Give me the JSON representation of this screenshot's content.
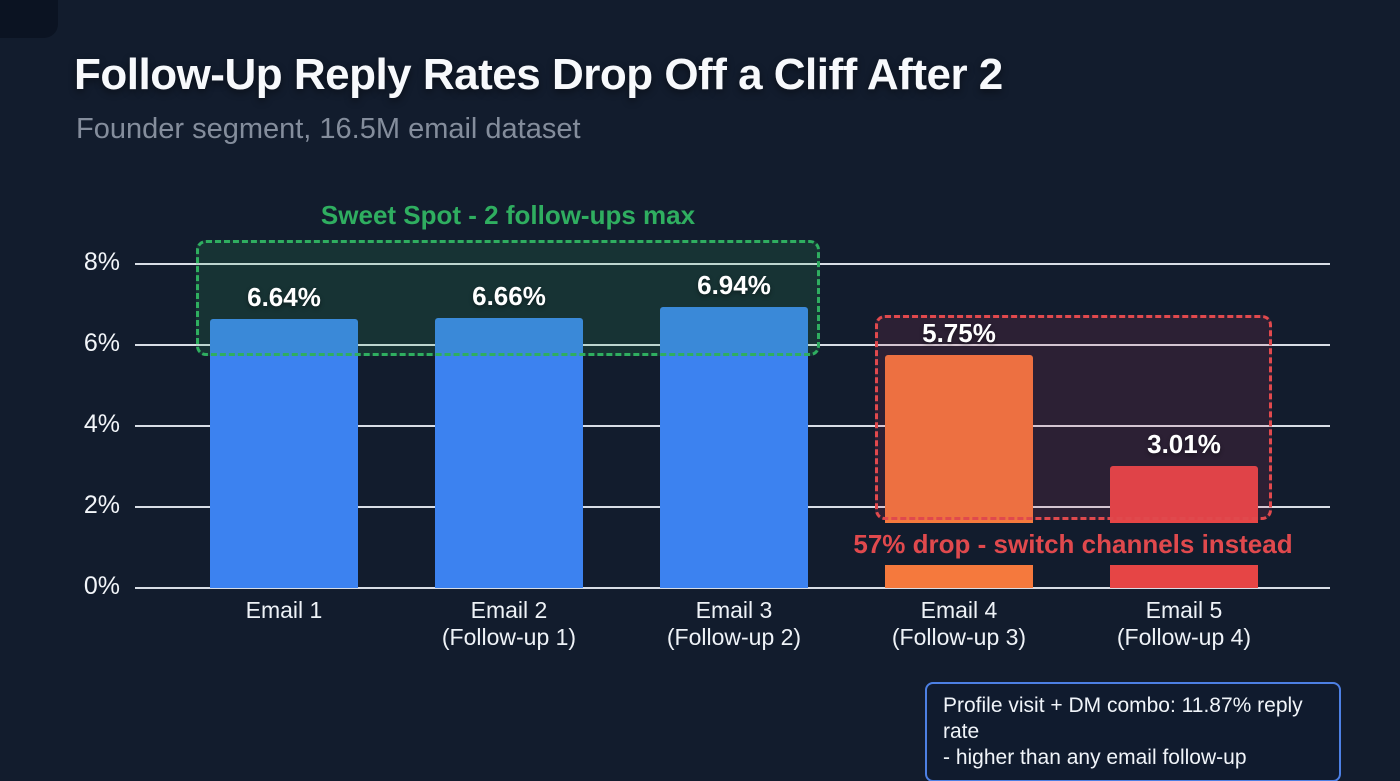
{
  "header": {
    "title": "Follow-Up Reply Rates Drop Off a Cliff After 2",
    "subtitle": "Founder segment, 16.5M email dataset"
  },
  "chart_data": {
    "type": "bar",
    "title": "Follow-Up Reply Rates Drop Off a Cliff After 2",
    "subtitle": "Founder segment, 16.5M email dataset",
    "categories": [
      [
        "Email 1",
        ""
      ],
      [
        "Email 2",
        "(Follow-up 1)"
      ],
      [
        "Email 3",
        "(Follow-up 2)"
      ],
      [
        "Email 4",
        "(Follow-up 3)"
      ],
      [
        "Email 5",
        "(Follow-up 4)"
      ]
    ],
    "values": [
      6.64,
      6.66,
      6.94,
      5.75,
      3.01
    ],
    "value_labels": [
      "6.64%",
      "6.66%",
      "6.94%",
      "5.75%",
      "3.01%"
    ],
    "bar_colors": [
      "#3c82f0",
      "#3c82f0",
      "#3c82f0",
      "#f5793d",
      "#e64545"
    ],
    "yticks": [
      "0%",
      "2%",
      "4%",
      "6%",
      "8%"
    ],
    "ylim": [
      0,
      8
    ],
    "grid": "horizontal",
    "background": "#121c2d",
    "annotations": {
      "sweet_spot": {
        "label": "Sweet Spot - 2 follow-ups max",
        "color": "#2fae60",
        "range": "Email 1 - Email 3"
      },
      "drop": {
        "label": "57% drop - switch channels instead",
        "color": "#e0494d",
        "range": "Email 4 - Email 5"
      },
      "callout": {
        "line1": "Profile visit + DM combo: 11.87% reply rate",
        "line2": "- higher than any email follow-up",
        "border_color": "#4d80e4"
      }
    }
  }
}
